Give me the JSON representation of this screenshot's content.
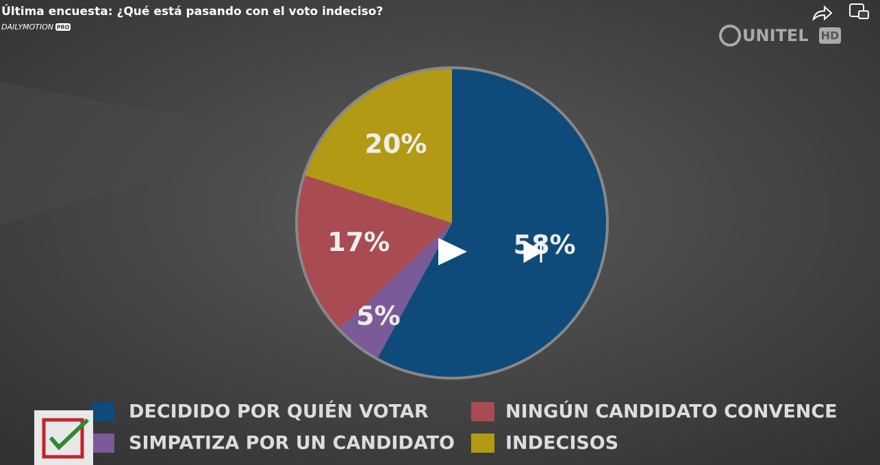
{
  "header": {
    "title": "Última encuesta: ¿Qué está pasando con el voto indeciso?",
    "brand": "DAILYMOTION",
    "brand_badge": "PRO"
  },
  "watermark": {
    "name": "UNITEL",
    "badge": "HD"
  },
  "chart_data": {
    "type": "pie",
    "categories": [
      "DECIDIDO POR QUIÉN VOTAR",
      "SIMPATIZA POR UN CANDIDATO",
      "NINGÚN CANDIDATO CONVENCE",
      "INDECISOS"
    ],
    "values": [
      58,
      5,
      17,
      20
    ],
    "value_labels": [
      "58%",
      "5%",
      "17%",
      "20%"
    ],
    "colors": [
      "#0f4b7a",
      "#7a5b97",
      "#a94b52",
      "#b39a14"
    ]
  }
}
